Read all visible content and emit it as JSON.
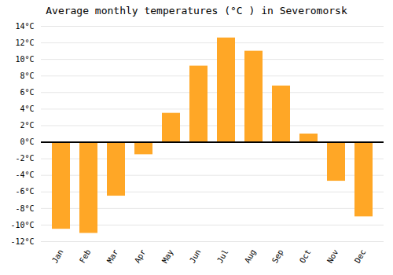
{
  "chart_data": {
    "type": "bar",
    "title": "Average monthly temperatures (°C ) in Severomorsk",
    "categories": [
      "Jan",
      "Feb",
      "Mar",
      "Apr",
      "May",
      "Jun",
      "Jul",
      "Aug",
      "Sep",
      "Oct",
      "Nov",
      "Dec"
    ],
    "values": [
      -10.5,
      -11.0,
      -6.5,
      -1.5,
      3.5,
      9.2,
      12.6,
      11.0,
      6.8,
      1.0,
      -4.7,
      -9.0
    ],
    "color": "#FFA726",
    "ylim": [
      -12,
      14
    ],
    "yticks": [
      {
        "value": -12,
        "label": "-12°C"
      },
      {
        "value": -10,
        "label": "-10°C"
      },
      {
        "value": -8,
        "label": "-8°C"
      },
      {
        "value": -6,
        "label": "-6°C"
      },
      {
        "value": -4,
        "label": "-4°C"
      },
      {
        "value": -2,
        "label": "-2°C"
      },
      {
        "value": 0,
        "label": "0°C"
      },
      {
        "value": 2,
        "label": "2°C"
      },
      {
        "value": 4,
        "label": "4°C"
      },
      {
        "value": 6,
        "label": "6°C"
      },
      {
        "value": 8,
        "label": "8°C"
      },
      {
        "value": 10,
        "label": "10°C"
      },
      {
        "value": 12,
        "label": "12°C"
      },
      {
        "value": 14,
        "label": "14°C"
      }
    ],
    "grid": true
  }
}
